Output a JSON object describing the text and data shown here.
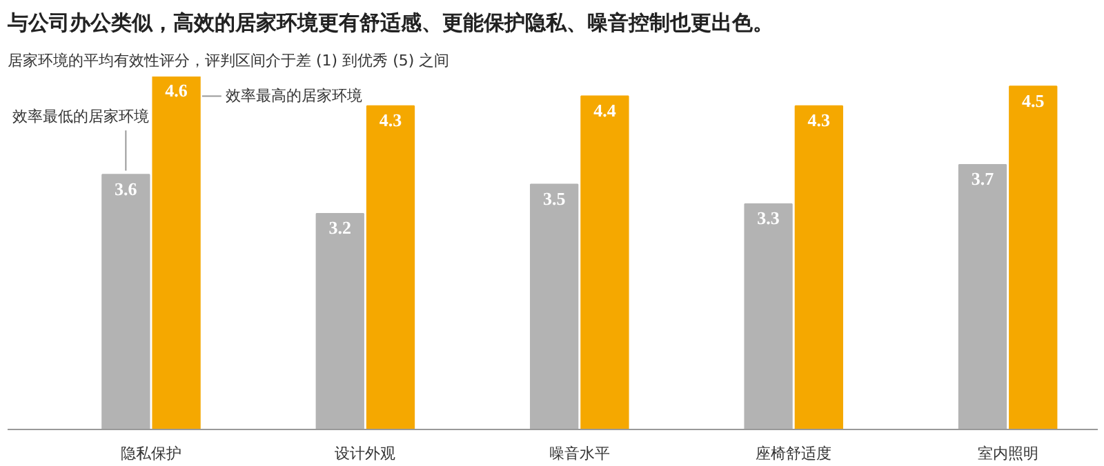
{
  "chart_data": {
    "type": "bar",
    "title": "与公司办公类似，高效的居家环境更有舒适感、更能保护隐私、噪音控制也更出色。",
    "subtitle": "居家环境的平均有效性评分，评判区间介于差 (1) 到优秀 (5) 之间",
    "categories": [
      "隐私保护",
      "设计外观",
      "噪音水平",
      "座椅舒适度",
      "室内照明"
    ],
    "series": [
      {
        "name": "效率最低的居家环境",
        "color": "#b3b3b3",
        "values": [
          3.6,
          3.2,
          3.5,
          3.3,
          3.7
        ]
      },
      {
        "name": "效率最高的居家环境",
        "color": "#f5a800",
        "values": [
          4.6,
          4.3,
          4.4,
          4.3,
          4.5
        ]
      }
    ],
    "ylim": [
      1,
      4.6
    ],
    "data_labels": true,
    "tick_labels": "x",
    "grid": false,
    "legend": false
  }
}
